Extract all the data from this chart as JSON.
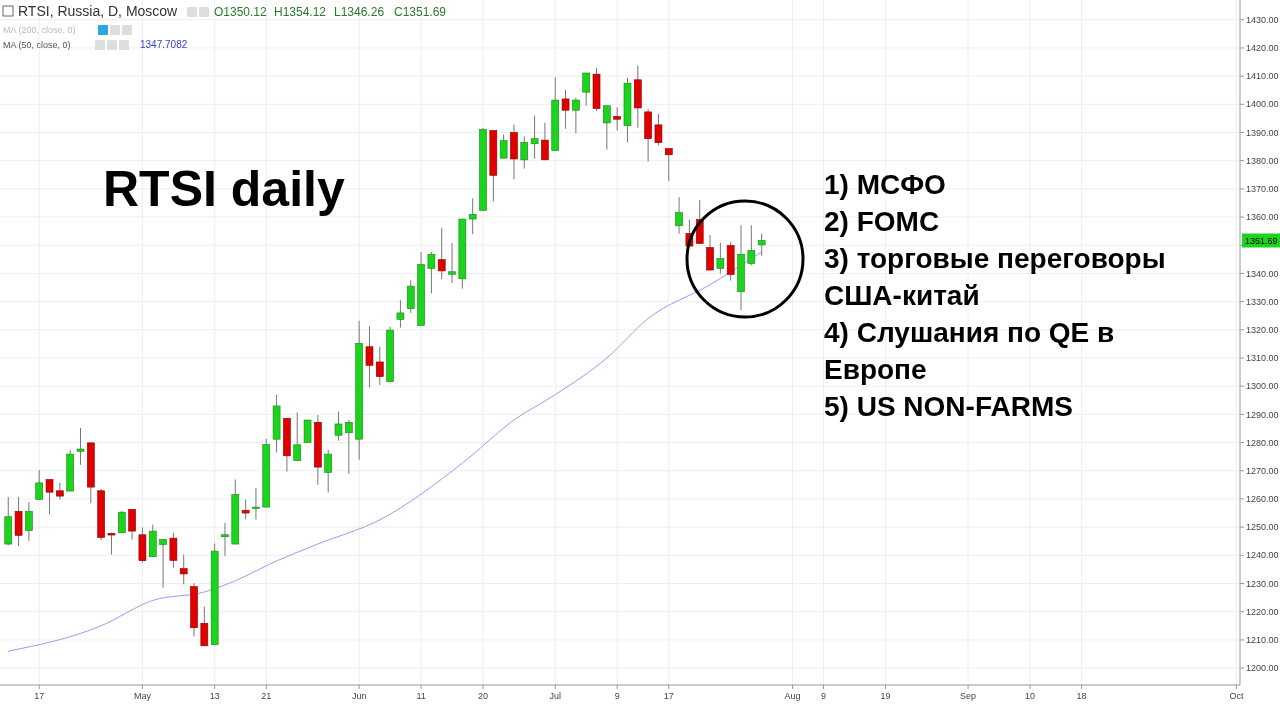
{
  "chart_data": {
    "type": "candlestick",
    "title": "RTSI daily",
    "categories": [
      null,
      null,
      null,
      "17",
      null,
      null,
      null,
      null,
      null,
      null,
      null,
      null,
      null,
      "May",
      null,
      null,
      null,
      null,
      null,
      null,
      "13",
      null,
      null,
      null,
      null,
      "21",
      null,
      null,
      null,
      null,
      null,
      null,
      null,
      null,
      "Jun",
      null,
      null,
      null,
      null,
      null,
      "11",
      null,
      null,
      null,
      null,
      null,
      "20",
      null,
      null,
      null,
      null,
      null,
      null,
      "Jul",
      null,
      null,
      null,
      null,
      null,
      "9",
      null,
      null,
      null,
      null,
      "17",
      null,
      null,
      null,
      null,
      null,
      null,
      null,
      null,
      null,
      null,
      null,
      "Aug",
      null,
      null,
      "9",
      null,
      null,
      null,
      null,
      null,
      "19",
      null,
      null,
      null,
      null,
      null,
      null,
      null,
      "Sep",
      null,
      null,
      null,
      null,
      null,
      "10",
      null,
      null,
      null,
      null,
      "18",
      null,
      null,
      null,
      null,
      null,
      null,
      null,
      null,
      null,
      null,
      null,
      null,
      null,
      null,
      "Oct"
    ],
    "ohlc": [
      [
        1244.0,
        1260.7,
        1243.5,
        1253.7
      ],
      [
        1255.6,
        1260.7,
        1243.3,
        1247.1
      ],
      [
        1248.8,
        1258.9,
        1245.1,
        1255.6
      ],
      [
        1259.8,
        1270.2,
        1259.8,
        1265.7
      ],
      [
        1266.9,
        1266.9,
        1254.5,
        1262.4
      ],
      [
        1262.9,
        1265.7,
        1259.8,
        1261.0
      ],
      [
        1262.8,
        1277.3,
        1262.8,
        1275.9
      ],
      [
        1276.9,
        1285.2,
        1272.1,
        1277.7
      ],
      [
        1279.9,
        1279.9,
        1258.4,
        1264.2
      ],
      [
        1262.9,
        1263.6,
        1245.4,
        1246.3
      ],
      [
        1247.8,
        1248.0,
        1240.3,
        1247.2
      ],
      [
        1248.0,
        1255.7,
        1248.0,
        1255.3
      ],
      [
        1256.3,
        1256.3,
        1245.6,
        1248.6
      ],
      [
        1247.3,
        1249.9,
        1237.4,
        1238.1
      ],
      [
        1239.5,
        1250.9,
        1239.5,
        1248.6
      ],
      [
        1243.8,
        1245.6,
        1228.5,
        1245.6
      ],
      [
        1246.1,
        1248.0,
        1235.6,
        1238.2
      ],
      [
        1235.3,
        1240.3,
        1229.7,
        1233.4
      ],
      [
        1228.9,
        1230.1,
        1211.2,
        1214.3
      ],
      [
        1215.9,
        1221.8,
        1207.9,
        1207.9
      ],
      [
        1208.3,
        1244.2,
        1208.3,
        1241.5
      ],
      [
        1246.6,
        1251.5,
        1239.7,
        1247.3
      ],
      [
        1244.0,
        1266.9,
        1244.0,
        1261.6
      ],
      [
        1256.0,
        1259.8,
        1252.7,
        1255.0
      ],
      [
        1256.6,
        1263.9,
        1252.7,
        1257.1
      ],
      [
        1257.1,
        1281.3,
        1257.1,
        1279.3
      ],
      [
        1281.2,
        1296.9,
        1276.5,
        1293.0
      ],
      [
        1288.6,
        1288.6,
        1269.7,
        1275.3
      ],
      [
        1273.6,
        1290.7,
        1273.6,
        1279.2
      ],
      [
        1280.0,
        1288.0,
        1280.0,
        1288.0
      ],
      [
        1287.2,
        1289.8,
        1265.0,
        1271.3
      ],
      [
        1269.4,
        1277.4,
        1262.3,
        1275.9
      ],
      [
        1282.6,
        1291.0,
        1280.7,
        1286.6
      ],
      [
        1283.5,
        1288.0,
        1268.9,
        1287.2
      ],
      [
        1281.2,
        1323.2,
        1273.9,
        1315.2
      ],
      [
        1314.0,
        1321.3,
        1299.6,
        1307.4
      ],
      [
        1308.6,
        1314.0,
        1300.4,
        1303.4
      ],
      [
        1301.6,
        1321.1,
        1301.6,
        1319.9
      ],
      [
        1323.7,
        1330.5,
        1320.8,
        1326.0
      ],
      [
        1327.5,
        1337.6,
        1326.0,
        1335.5
      ],
      [
        1321.5,
        1347.6,
        1321.5,
        1343.2
      ],
      [
        1341.8,
        1347.6,
        1332.9,
        1346.8
      ],
      [
        1344.9,
        1356.2,
        1338.0,
        1340.9
      ],
      [
        1339.7,
        1350.8,
        1336.6,
        1340.6
      ],
      [
        1338.1,
        1359.3,
        1334.6,
        1359.3
      ],
      [
        1359.3,
        1366.6,
        1353.9,
        1361.0
      ],
      [
        1362.4,
        1391.6,
        1362.4,
        1391.1
      ],
      [
        1390.7,
        1390.7,
        1365.5,
        1374.8
      ],
      [
        1380.9,
        1389.3,
        1380.9,
        1387.1
      ],
      [
        1390.0,
        1392.8,
        1373.4,
        1380.6
      ],
      [
        1380.3,
        1388.6,
        1377.2,
        1386.5
      ],
      [
        1386.0,
        1396.0,
        1380.7,
        1387.8
      ],
      [
        1387.3,
        1393.4,
        1380.3,
        1380.3
      ],
      [
        1383.6,
        1409.6,
        1383.6,
        1401.5
      ],
      [
        1401.9,
        1405.1,
        1391.3,
        1397.9
      ],
      [
        1397.9,
        1402.3,
        1389.8,
        1401.5
      ],
      [
        1404.3,
        1411.1,
        1399.6,
        1411.1
      ],
      [
        1410.7,
        1412.9,
        1397.6,
        1398.5
      ],
      [
        1393.4,
        1399.5,
        1383.9,
        1399.5
      ],
      [
        1395.7,
        1399.0,
        1390.7,
        1394.7
      ],
      [
        1392.4,
        1409.4,
        1386.5,
        1407.5
      ],
      [
        1408.7,
        1413.7,
        1391.7,
        1398.7
      ],
      [
        1397.3,
        1398.3,
        1379.7,
        1387.8
      ],
      [
        1392.7,
        1396.6,
        1385.4,
        1386.4
      ],
      [
        1384.3,
        1384.3,
        1372.8,
        1382.1
      ],
      [
        1356.9,
        1367.1,
        1354.1,
        1361.6
      ],
      [
        1354.2,
        1359.1,
        1349.7,
        1349.7
      ],
      [
        1359.1,
        1366.0,
        1350.6,
        1350.6
      ],
      [
        1349.2,
        1353.6,
        1341.2,
        1341.2
      ],
      [
        1341.8,
        1350.9,
        1340.0,
        1345.3
      ],
      [
        1349.9,
        1351.2,
        1337.4,
        1339.6
      ],
      [
        1333.5,
        1357.1,
        1327.0,
        1346.8
      ],
      [
        1343.5,
        1357.1,
        1342.9,
        1348.2
      ],
      [
        1350.12,
        1354.12,
        1346.26,
        1351.69
      ],
      null,
      null,
      null,
      null,
      null,
      null,
      null,
      null,
      null,
      null,
      null,
      null,
      null,
      null,
      null,
      null,
      null,
      null,
      null,
      null,
      null,
      null,
      null,
      null,
      null,
      null,
      null,
      null,
      null,
      null,
      null,
      null,
      null,
      null,
      null,
      null,
      null,
      null,
      null,
      null,
      null,
      null,
      null,
      null,
      null,
      null
    ],
    "series": [
      {
        "name": "MA (50, close, 0)",
        "type": "line",
        "color": "#9b9bf2",
        "values": [
          1206,
          null,
          null,
          null,
          null,
          null,
          null,
          null,
          null,
          1215,
          null,
          null,
          null,
          null,
          1224,
          null,
          null,
          null,
          null,
          1227,
          null,
          null,
          1231,
          null,
          null,
          null,
          1238,
          null,
          null,
          null,
          1244,
          null,
          null,
          null,
          null,
          null,
          1252.6,
          null,
          null,
          null,
          null,
          null,
          null,
          null,
          1272.7,
          null,
          null,
          null,
          null,
          1288,
          null,
          null,
          null,
          1297,
          null,
          null,
          null,
          null,
          1310,
          null,
          null,
          null,
          1324,
          null,
          null,
          null,
          null,
          null,
          1336,
          null,
          null,
          null,
          null,
          1347.7,
          null,
          null,
          null,
          null,
          null,
          null,
          null,
          null,
          null,
          null,
          null,
          null,
          null,
          null,
          null,
          null,
          null,
          null,
          null,
          null,
          null,
          null,
          null,
          null,
          null,
          null,
          null,
          null,
          null,
          null,
          null,
          null,
          null,
          null,
          null,
          null,
          null,
          null,
          null,
          null,
          null,
          null,
          null,
          null,
          null,
          null
        ]
      }
    ],
    "ylim": [
      1194,
      1437
    ],
    "yticks": [
      {
        "value": 1200,
        "label": "1200.00"
      },
      {
        "value": 1210,
        "label": "1210.00"
      },
      {
        "value": 1220,
        "label": "1220.00"
      },
      {
        "value": 1230,
        "label": "1230.00"
      },
      {
        "value": 1240,
        "label": "1240.00"
      },
      {
        "value": 1250,
        "label": "1250.00"
      },
      {
        "value": 1260,
        "label": "1260.00"
      },
      {
        "value": 1270,
        "label": "1270.00"
      },
      {
        "value": 1280,
        "label": "1280.00"
      },
      {
        "value": 1290,
        "label": "1290.00"
      },
      {
        "value": 1300,
        "label": "1300.00"
      },
      {
        "value": 1310,
        "label": "1310.00"
      },
      {
        "value": 1320,
        "label": "1320.00"
      },
      {
        "value": 1330,
        "label": "1330.00"
      },
      {
        "value": 1340,
        "label": "1340.00"
      },
      {
        "value": 1350,
        "label": null
      },
      {
        "value": 1360,
        "label": "1360.00"
      },
      {
        "value": 1370,
        "label": "1370.00"
      },
      {
        "value": 1380,
        "label": "1380.00"
      },
      {
        "value": 1390,
        "label": "1390.00"
      },
      {
        "value": 1400,
        "label": "1400.00"
      },
      {
        "value": 1410,
        "label": "1410.00"
      },
      {
        "value": 1420,
        "label": "1420.00"
      },
      {
        "value": 1430,
        "label": "1430.00"
      }
    ],
    "grid": true,
    "annotations": [
      "RTSI, Russia, D, Moscow",
      "O1350.12",
      "H1354.12",
      "L1346.26",
      "C1351.69",
      "MA (200, close, 0)",
      "1347.7082",
      {
        "text": "1351.69",
        "y": 1351.69
      },
      "1) МСФО",
      "2) FOMC",
      "3) торговые переговоры\nСША-китай",
      "4) Слушания по QE в\nЕвропе",
      "5) US NON-FARMS"
    ]
  }
}
